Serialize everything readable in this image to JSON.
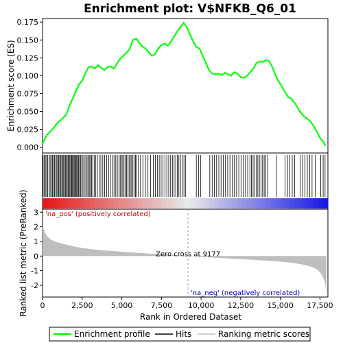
{
  "chart_data": {
    "type": "line",
    "title": "Enrichment plot: V$NFKB_Q6_01",
    "xlabel": "Rank in Ordered Dataset",
    "xlim": [
      0,
      18000
    ],
    "xticks": [
      0,
      2500,
      5000,
      7500,
      10000,
      12500,
      15000,
      17500
    ],
    "xtick_labels": [
      "0",
      "2,500",
      "5,000",
      "7,500",
      "10,000",
      "12,500",
      "15,000",
      "17,500"
    ],
    "es_panel": {
      "ylabel": "Enrichment score (ES)",
      "ylim": [
        -0.008,
        0.18
      ],
      "yticks": [
        0.0,
        0.025,
        0.05,
        0.075,
        0.1,
        0.125,
        0.15,
        0.175
      ],
      "ytick_labels": [
        "0.000",
        "0.025",
        "0.050",
        "0.075",
        "0.100",
        "0.125",
        "0.150",
        "0.175"
      ],
      "series": [
        {
          "name": "Enrichment profile",
          "color": "#00ff00",
          "x": [
            0,
            150,
            300,
            500,
            700,
            900,
            1100,
            1300,
            1500,
            1700,
            1900,
            2100,
            2300,
            2500,
            2700,
            2900,
            3100,
            3300,
            3500,
            3700,
            3900,
            4100,
            4300,
            4500,
            4700,
            4900,
            5100,
            5300,
            5500,
            5700,
            5900,
            6100,
            6300,
            6500,
            6700,
            6900,
            7100,
            7300,
            7500,
            7700,
            7900,
            8100,
            8300,
            8500,
            8700,
            8900,
            9100,
            9300,
            9500,
            9700,
            9900,
            10100,
            10300,
            10500,
            10700,
            10900,
            11100,
            11300,
            11500,
            11700,
            11900,
            12100,
            12300,
            12500,
            12700,
            12900,
            13100,
            13300,
            13500,
            13700,
            13900,
            14100,
            14300,
            14500,
            14700,
            14900,
            15100,
            15300,
            15500,
            15700,
            15900,
            16100,
            16300,
            16500,
            16700,
            16900,
            17100,
            17300,
            17500,
            17700,
            17850
          ],
          "y": [
            0.005,
            0.012,
            0.018,
            0.022,
            0.027,
            0.033,
            0.037,
            0.041,
            0.046,
            0.058,
            0.068,
            0.078,
            0.088,
            0.093,
            0.103,
            0.112,
            0.113,
            0.11,
            0.115,
            0.111,
            0.108,
            0.112,
            0.113,
            0.11,
            0.117,
            0.124,
            0.128,
            0.132,
            0.138,
            0.15,
            0.152,
            0.146,
            0.141,
            0.138,
            0.133,
            0.128,
            0.13,
            0.138,
            0.143,
            0.145,
            0.142,
            0.148,
            0.155,
            0.162,
            0.168,
            0.174,
            0.168,
            0.158,
            0.148,
            0.14,
            0.138,
            0.128,
            0.118,
            0.108,
            0.103,
            0.102,
            0.103,
            0.101,
            0.104,
            0.102,
            0.1,
            0.105,
            0.103,
            0.098,
            0.097,
            0.1,
            0.105,
            0.11,
            0.118,
            0.12,
            0.119,
            0.122,
            0.12,
            0.112,
            0.1,
            0.092,
            0.085,
            0.077,
            0.07,
            0.068,
            0.062,
            0.055,
            0.048,
            0.043,
            0.04,
            0.036,
            0.03,
            0.022,
            0.013,
            0.008,
            0.002
          ]
        }
      ]
    },
    "hits_panel": {
      "series_name": "Hits",
      "color": "#000000",
      "positions": [
        40,
        110,
        180,
        260,
        330,
        410,
        480,
        560,
        630,
        700,
        760,
        830,
        900,
        960,
        1020,
        1080,
        1150,
        1210,
        1270,
        1330,
        1390,
        1450,
        1510,
        1560,
        1620,
        1680,
        1730,
        1790,
        1840,
        1890,
        1950,
        2000,
        2050,
        2110,
        2160,
        2210,
        2270,
        2330,
        2400,
        2470,
        2550,
        2640,
        2730,
        2810,
        2880,
        2950,
        3020,
        3090,
        3170,
        3260,
        3360,
        3460,
        3570,
        3680,
        3800,
        3920,
        4050,
        4170,
        4290,
        4400,
        4510,
        4620,
        4720,
        4820,
        4900,
        4980,
        5060,
        5140,
        5220,
        5300,
        5380,
        5460,
        5540,
        5620,
        5700,
        5780,
        5860,
        5950,
        6050,
        6180,
        6330,
        6490,
        6650,
        6820,
        6990,
        7120,
        7240,
        7360,
        7480,
        7600,
        7720,
        7840,
        7960,
        8080,
        8190,
        8300,
        8400,
        8500,
        8600,
        8700,
        8810,
        8920,
        9030,
        9700,
        9850,
        9980,
        10550,
        10700,
        10840,
        10980,
        11120,
        11260,
        11400,
        11540,
        11680,
        11820,
        11960,
        12100,
        12240,
        12380,
        12520,
        12660,
        12800,
        12940,
        13080,
        13180,
        13280,
        13380,
        13480,
        13580,
        13680,
        13780,
        13880,
        13980,
        14080,
        14200,
        14750,
        15300,
        15450,
        15600,
        15750,
        15900,
        16250,
        16400,
        16550,
        16700,
        16850,
        17000,
        17200,
        17550,
        17700,
        17820
      ]
    },
    "metric_panel": {
      "series_name": "Ranking metric scores",
      "color": "#bebebe",
      "ylabel": "Ranked list metric (PreRanked)",
      "ylim": [
        -2.8,
        3.2
      ],
      "yticks": [
        -2,
        -1,
        0,
        1,
        2,
        3
      ],
      "ytick_labels": [
        "-2",
        "-1",
        "0",
        "1",
        "2",
        "3"
      ],
      "x": [
        0,
        50,
        150,
        300,
        500,
        750,
        1000,
        1500,
        2000,
        2500,
        3000,
        4000,
        5000,
        6000,
        7000,
        8000,
        9177,
        10000,
        11000,
        12000,
        13000,
        14000,
        15000,
        15500,
        16000,
        16500,
        17000,
        17300,
        17500,
        17650,
        17750,
        17850,
        17900
      ],
      "y": [
        2.05,
        1.9,
        1.6,
        1.35,
        1.15,
        1.0,
        0.92,
        0.78,
        0.65,
        0.55,
        0.48,
        0.38,
        0.3,
        0.22,
        0.15,
        0.09,
        0.0,
        -0.05,
        -0.12,
        -0.18,
        -0.24,
        -0.3,
        -0.38,
        -0.43,
        -0.5,
        -0.6,
        -0.75,
        -0.9,
        -1.1,
        -1.35,
        -1.6,
        -2.0,
        -2.6
      ],
      "zero_cross_label": "Zero cross at 9177",
      "zero_cross_at": 9177,
      "pos_label": "'na_pos' (positively correlated)",
      "neg_label": "'na_neg' (negatively correlated)",
      "pos_color": "#cc0000",
      "neg_color": "#0000cc"
    },
    "legend": {
      "placement": "bottom",
      "entries": [
        {
          "label": "Enrichment profile",
          "color": "#00ff00"
        },
        {
          "label": "Hits",
          "color": "#000000"
        },
        {
          "label": "Ranking metric scores",
          "color": "#bebebe"
        }
      ]
    },
    "grid": false
  }
}
